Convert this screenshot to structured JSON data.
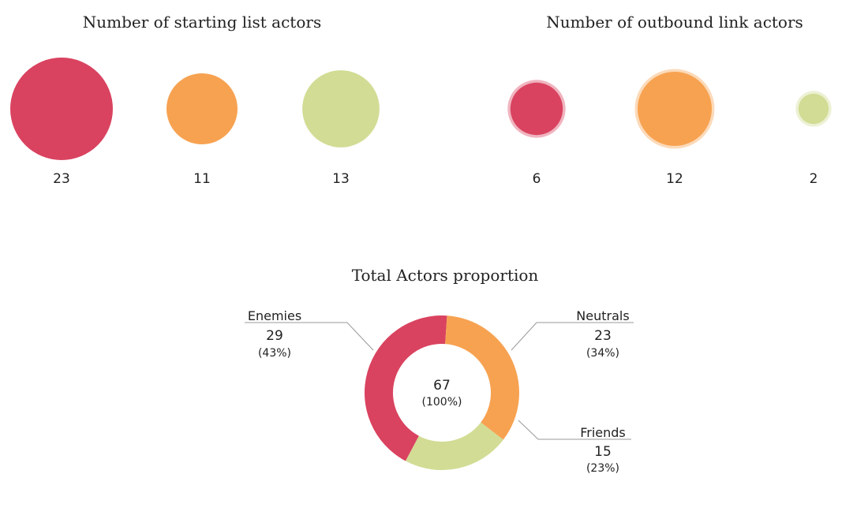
{
  "chart_data": [
    {
      "type": "bubble",
      "title": "Number of starting list actors",
      "series": [
        {
          "category": "Enemies",
          "value": 23,
          "color": "#d94360"
        },
        {
          "category": "Neutrals",
          "value": 11,
          "color": "#f7a251"
        },
        {
          "category": "Friends",
          "value": 13,
          "color": "#d2dc94"
        }
      ]
    },
    {
      "type": "bubble",
      "title": "Number of outbound link actors",
      "series": [
        {
          "category": "Enemies",
          "value": 6,
          "color": "#d94360"
        },
        {
          "category": "Neutrals",
          "value": 12,
          "color": "#f7a251"
        },
        {
          "category": "Friends",
          "value": 2,
          "color": "#d2dc94"
        }
      ]
    },
    {
      "type": "pie",
      "title": "Total Actors proportion",
      "total": {
        "value": "67",
        "percent": "(100%)"
      },
      "slices": [
        {
          "label": "Enemies",
          "value": 29,
          "percent": "(43%)",
          "color": "#d94360"
        },
        {
          "label": "Neutrals",
          "value": 23,
          "percent": "(34%)",
          "color": "#f7a251"
        },
        {
          "label": "Friends",
          "value": 15,
          "percent": "(23%)",
          "color": "#d2dc94"
        }
      ]
    }
  ]
}
